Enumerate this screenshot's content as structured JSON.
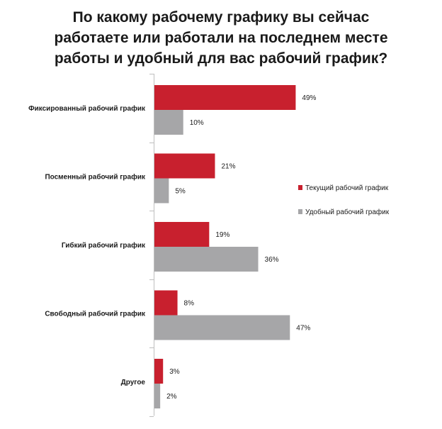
{
  "chart_data": {
    "type": "bar",
    "orientation": "horizontal",
    "title_lines": [
      "По какому рабочему графику вы сейчас",
      "работаете или работали на последнем месте",
      "работы и удобный для вас рабочий график?"
    ],
    "categories": [
      "Фиксированный  рабочий график",
      "Посменный  рабочий график",
      "Гибкий  рабочий график",
      "Свободный  рабочий график",
      "Другое"
    ],
    "series": [
      {
        "name": "Текущий  рабочий график",
        "values": [
          49,
          21,
          19,
          8,
          3
        ],
        "labels": [
          "49%",
          "21%",
          "19%",
          "8%",
          "3%"
        ],
        "color": "#c8202e"
      },
      {
        "name": "Удобный рабочий график",
        "values": [
          10,
          5,
          36,
          47,
          2
        ],
        "labels": [
          "10%",
          "5%",
          "36%",
          "47%",
          "2%"
        ],
        "color": "#a6a6a8"
      }
    ],
    "xlim": [
      0,
      50
    ],
    "grid": false,
    "legend_position": "right",
    "axis_color": "#bfbfbf"
  }
}
